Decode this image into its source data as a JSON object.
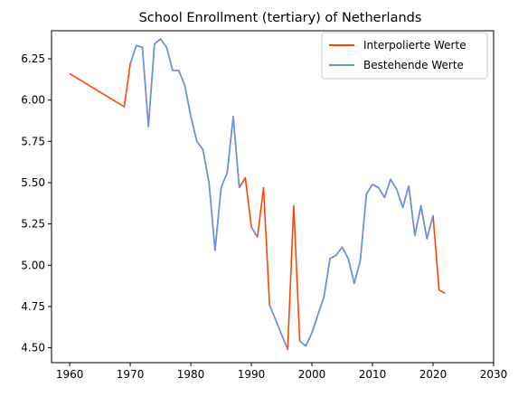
{
  "chart_data": {
    "type": "line",
    "title": "School Enrollment (tertiary) of Netherlands",
    "xlabel": "",
    "ylabel": "",
    "xlim": [
      1957,
      2030
    ],
    "ylim": [
      4.41,
      6.42
    ],
    "x_ticks": [
      1960,
      1970,
      1980,
      1990,
      2000,
      2010,
      2020,
      2030
    ],
    "y_ticks": [
      4.5,
      4.75,
      5.0,
      5.25,
      5.5,
      5.75,
      6.0,
      6.25
    ],
    "y_tick_labels": [
      "4.50",
      "4.75",
      "5.00",
      "5.25",
      "5.50",
      "5.75",
      "6.00",
      "6.25"
    ],
    "grid": false,
    "legend_position": "top-right",
    "series": [
      {
        "name": "Interpolierte Werte",
        "color": "#ff4500",
        "x": [
          1960,
          1969,
          1970,
          1971,
          1972,
          1973,
          1974,
          1975,
          1976,
          1977,
          1978,
          1979,
          1980,
          1981,
          1982,
          1983,
          1984,
          1985,
          1986,
          1987,
          1988,
          1989,
          1990,
          1991,
          1992,
          1993,
          1994,
          1995,
          1996,
          1997,
          1998,
          1999,
          2000,
          2001,
          2002,
          2003,
          2004,
          2005,
          2006,
          2007,
          2008,
          2009,
          2010,
          2011,
          2012,
          2013,
          2014,
          2015,
          2016,
          2017,
          2018,
          2019,
          2020,
          2021,
          2022
        ],
        "y": [
          6.16,
          5.96,
          6.22,
          6.33,
          6.32,
          5.84,
          6.34,
          6.37,
          6.32,
          6.18,
          6.18,
          6.09,
          5.9,
          5.75,
          5.7,
          5.5,
          5.09,
          5.47,
          5.56,
          5.9,
          5.47,
          5.53,
          5.23,
          5.17,
          5.47,
          4.76,
          4.67,
          4.58,
          4.49,
          5.36,
          4.54,
          4.51,
          4.59,
          4.7,
          4.81,
          5.04,
          5.06,
          5.11,
          5.04,
          4.89,
          5.03,
          5.43,
          5.49,
          5.47,
          5.41,
          5.52,
          5.46,
          5.35,
          5.48,
          5.18,
          5.36,
          5.16,
          5.3,
          4.85,
          4.83
        ]
      },
      {
        "name": "Bestehende Werte",
        "color": "#6495ed",
        "segments": [
          {
            "x": [
              1970,
              1971,
              1972,
              1973,
              1974,
              1975,
              1976,
              1977,
              1978,
              1979,
              1980,
              1981,
              1982,
              1983,
              1984,
              1985,
              1986,
              1987,
              1988
            ],
            "y": [
              6.22,
              6.33,
              6.32,
              5.84,
              6.34,
              6.37,
              6.32,
              6.18,
              6.18,
              6.09,
              5.9,
              5.75,
              5.7,
              5.5,
              5.09,
              5.47,
              5.56,
              5.9,
              5.47
            ]
          },
          {
            "x": [
              1990,
              1991
            ],
            "y": [
              5.23,
              5.17
            ]
          },
          {
            "x": [
              1993,
              1994,
              1995,
              1996
            ],
            "y": [
              4.76,
              4.67,
              4.58,
              4.49
            ]
          },
          {
            "x": [
              1998,
              1999,
              2000,
              2001,
              2002,
              2003,
              2004,
              2005,
              2006,
              2007,
              2008,
              2009,
              2010,
              2011,
              2012,
              2013,
              2014,
              2015,
              2016,
              2017,
              2018,
              2019,
              2020
            ],
            "y": [
              4.54,
              4.51,
              4.59,
              4.7,
              4.81,
              5.04,
              5.06,
              5.11,
              5.04,
              4.89,
              5.03,
              5.43,
              5.49,
              5.47,
              5.41,
              5.52,
              5.46,
              5.35,
              5.48,
              5.18,
              5.36,
              5.16,
              5.3
            ]
          }
        ]
      }
    ]
  }
}
